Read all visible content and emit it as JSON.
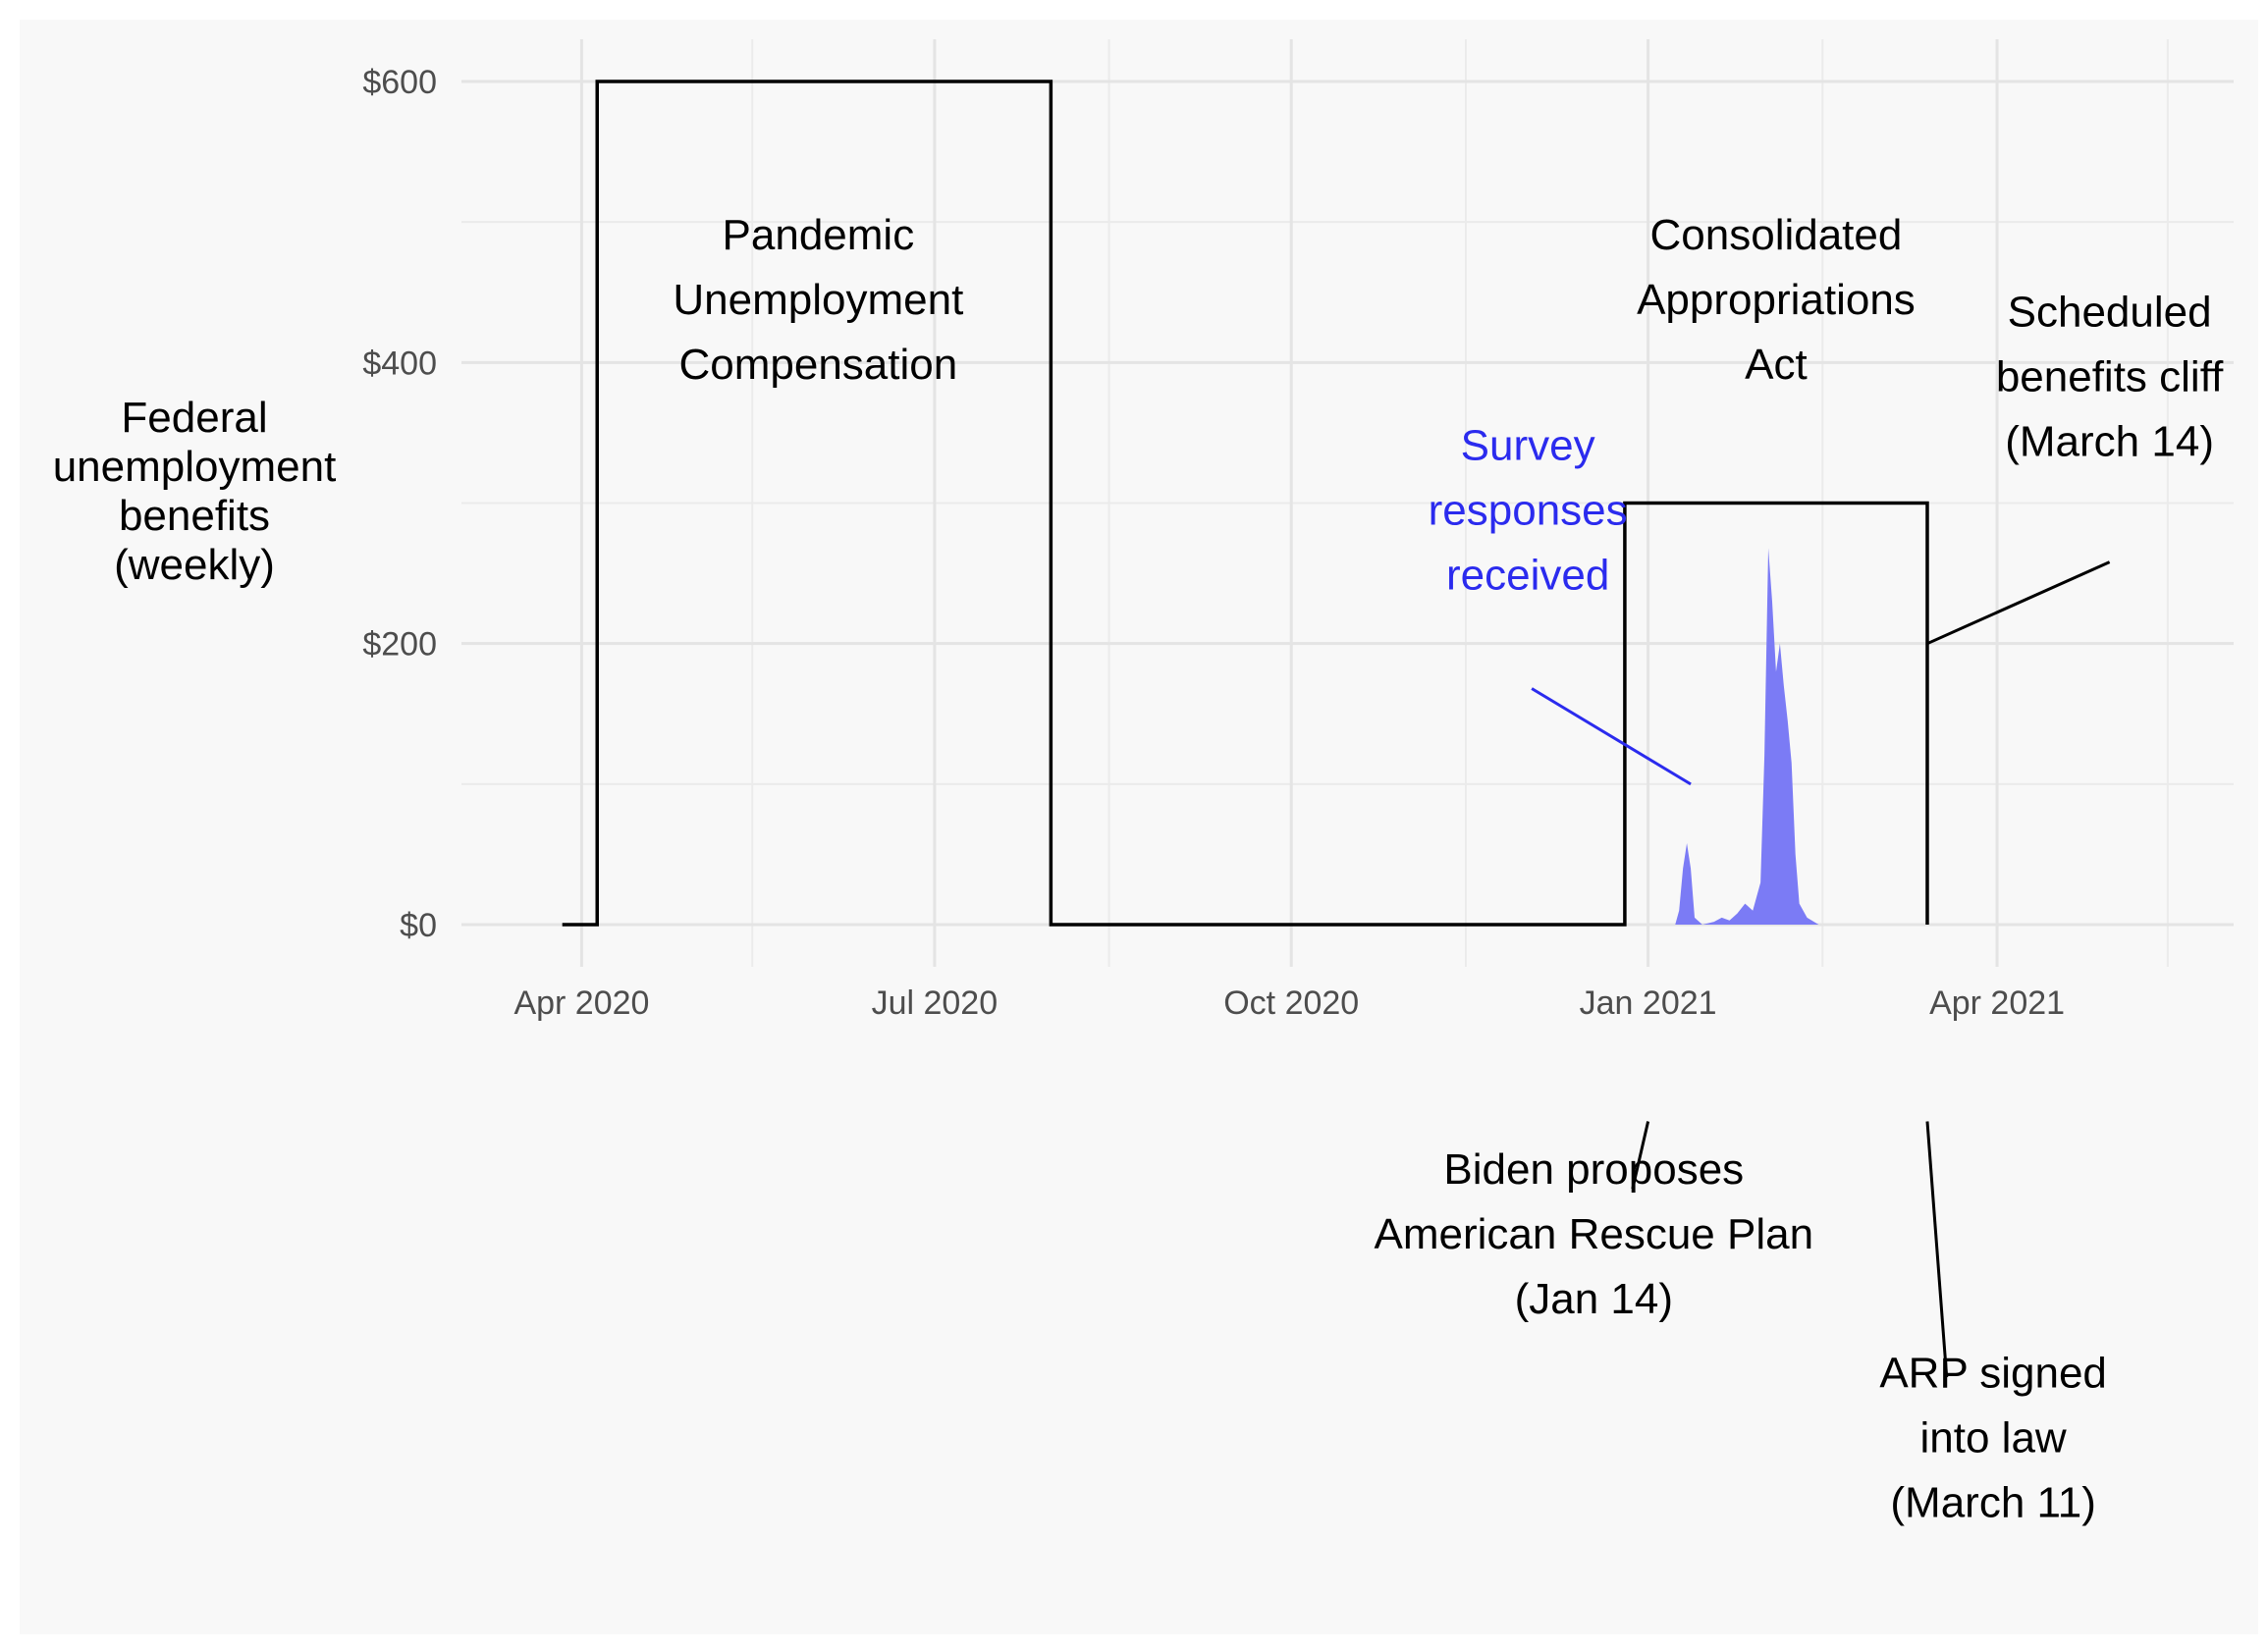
{
  "chart_data": {
    "type": "line",
    "xlabel": "",
    "ylabel": [
      "Federal",
      "unemployment",
      "benefits",
      "(weekly)"
    ],
    "ylim": [
      -30,
      630
    ],
    "xlim": [
      "2020-03-01",
      "2021-06-01"
    ],
    "grid": true,
    "y_ticks": [
      {
        "value": 0,
        "label": "$0"
      },
      {
        "value": 200,
        "label": "$200"
      },
      {
        "value": 400,
        "label": "$400"
      },
      {
        "value": 600,
        "label": "$600"
      }
    ],
    "y_minor_ticks": [
      100,
      300,
      500
    ],
    "x_ticks": [
      {
        "date": "2020-04-01",
        "label": "Apr 2020"
      },
      {
        "date": "2020-07-01",
        "label": "Jul 2020"
      },
      {
        "date": "2020-10-01",
        "label": "Oct 2020"
      },
      {
        "date": "2021-01-01",
        "label": "Jan 2021"
      },
      {
        "date": "2021-04-01",
        "label": "Apr 2021"
      }
    ],
    "x_minor_ticks": [
      "2020-05-15",
      "2020-08-15",
      "2020-11-15",
      "2021-02-15",
      "2021-05-15"
    ],
    "series": [
      {
        "style": "step",
        "color": "#000000",
        "points": [
          {
            "date": "2020-03-27",
            "value": 0
          },
          {
            "date": "2020-04-05",
            "value": 0
          },
          {
            "date": "2020-04-05",
            "value": 600
          },
          {
            "date": "2020-07-31",
            "value": 600
          },
          {
            "date": "2020-07-31",
            "value": 0
          },
          {
            "date": "2020-12-26",
            "value": 0
          },
          {
            "date": "2020-12-26",
            "value": 300
          },
          {
            "date": "2021-03-14",
            "value": 300
          },
          {
            "date": "2021-03-14",
            "value": 0
          }
        ]
      },
      {
        "style": "area",
        "color": "#7b7bf5",
        "points": [
          {
            "date": "2021-01-08",
            "value": 0
          },
          {
            "date": "2021-01-09",
            "value": 10
          },
          {
            "date": "2021-01-10",
            "value": 40
          },
          {
            "date": "2021-01-11",
            "value": 58
          },
          {
            "date": "2021-01-12",
            "value": 40
          },
          {
            "date": "2021-01-13",
            "value": 5
          },
          {
            "date": "2021-01-15",
            "value": 0
          },
          {
            "date": "2021-01-18",
            "value": 2
          },
          {
            "date": "2021-01-20",
            "value": 5
          },
          {
            "date": "2021-01-22",
            "value": 3
          },
          {
            "date": "2021-01-24",
            "value": 8
          },
          {
            "date": "2021-01-26",
            "value": 15
          },
          {
            "date": "2021-01-28",
            "value": 10
          },
          {
            "date": "2021-01-30",
            "value": 30
          },
          {
            "date": "2021-01-31",
            "value": 120
          },
          {
            "date": "2021-02-01",
            "value": 268
          },
          {
            "date": "2021-02-02",
            "value": 230
          },
          {
            "date": "2021-02-03",
            "value": 180
          },
          {
            "date": "2021-02-04",
            "value": 200
          },
          {
            "date": "2021-02-05",
            "value": 170
          },
          {
            "date": "2021-02-06",
            "value": 145
          },
          {
            "date": "2021-02-07",
            "value": 115
          },
          {
            "date": "2021-02-08",
            "value": 50
          },
          {
            "date": "2021-02-09",
            "value": 15
          },
          {
            "date": "2021-02-11",
            "value": 5
          },
          {
            "date": "2021-02-14",
            "value": 0
          }
        ]
      }
    ],
    "annotations": [
      {
        "lines": [
          "Pandemic",
          "Unemployment",
          "Compensation"
        ],
        "color": "#000000",
        "date": "2020-06-01",
        "value": 445
      },
      {
        "lines": [
          "Consolidated",
          "Appropriations",
          "Act"
        ],
        "color": "#000000",
        "date": "2021-02-03",
        "value": 445
      },
      {
        "lines": [
          "Scheduled",
          "benefits cliff",
          "(March 14)"
        ],
        "color": "#000000",
        "date": "2021-04-30",
        "value": 390,
        "pointer": {
          "from": {
            "date": "2021-04-30",
            "value": 258
          },
          "to": {
            "date": "2021-03-14",
            "value": 200
          }
        }
      },
      {
        "lines": [
          "Survey",
          "responses",
          "received"
        ],
        "color": "#2b2bee",
        "date": "2020-12-01",
        "value": 295,
        "pointer": {
          "from": {
            "date": "2020-12-02",
            "value": 168
          },
          "to": {
            "date": "2021-01-12",
            "value": 100
          }
        }
      },
      {
        "lines": [
          "Biden proposes",
          "American Rescue Plan",
          "(Jan 14)"
        ],
        "color": "#000000",
        "date": "2020-12-18",
        "value": -220,
        "pointer": {
          "from": {
            "date": "2021-01-01",
            "value": -140
          },
          "to": {
            "date": "2020-12-28",
            "value": -188
          }
        }
      },
      {
        "lines": [
          "ARP signed",
          "into law",
          "(March 11)"
        ],
        "color": "#000000",
        "date": "2021-03-31",
        "value": -365,
        "pointer": {
          "from": {
            "date": "2021-03-14",
            "value": -140
          },
          "to": {
            "date": "2021-03-19",
            "value": -322
          }
        }
      }
    ]
  }
}
